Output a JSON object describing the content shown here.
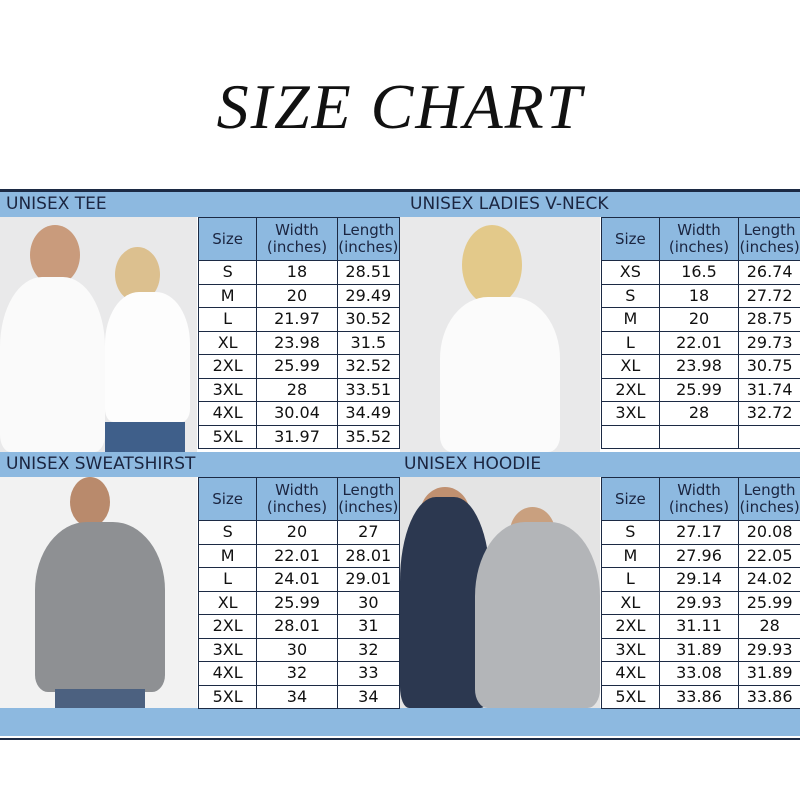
{
  "title": "SIZE CHART",
  "headers": {
    "size": "Size",
    "width": "Width\n(inches)",
    "length": "Length\n(inches)",
    "width1": "Width",
    "width2": "(inches)",
    "length1": "Length",
    "length2": "(inches)"
  },
  "sections": [
    {
      "title": "UNISEX TEE",
      "rows": [
        [
          "S",
          "18",
          "28.51"
        ],
        [
          "M",
          "20",
          "29.49"
        ],
        [
          "L",
          "21.97",
          "30.52"
        ],
        [
          "XL",
          "23.98",
          "31.5"
        ],
        [
          "2XL",
          "25.99",
          "32.52"
        ],
        [
          "3XL",
          "28",
          "33.51"
        ],
        [
          "4XL",
          "30.04",
          "34.49"
        ],
        [
          "5XL",
          "31.97",
          "35.52"
        ]
      ]
    },
    {
      "title": "UNISEX LADIES V-NECK",
      "rows": [
        [
          "XS",
          "16.5",
          "26.74"
        ],
        [
          "S",
          "18",
          "27.72"
        ],
        [
          "M",
          "20",
          "28.75"
        ],
        [
          "L",
          "22.01",
          "29.73"
        ],
        [
          "XL",
          "23.98",
          "30.75"
        ],
        [
          "2XL",
          "25.99",
          "31.74"
        ],
        [
          "3XL",
          "28",
          "32.72"
        ],
        [
          "",
          "",
          ""
        ]
      ]
    },
    {
      "title": "UNISEX SWEATSHIRST",
      "rows": [
        [
          "S",
          "20",
          "27"
        ],
        [
          "M",
          "22.01",
          "28.01"
        ],
        [
          "L",
          "24.01",
          "29.01"
        ],
        [
          "XL",
          "25.99",
          "30"
        ],
        [
          "2XL",
          "28.01",
          "31"
        ],
        [
          "3XL",
          "30",
          "32"
        ],
        [
          "4XL",
          "32",
          "33"
        ],
        [
          "5XL",
          "34",
          "34"
        ]
      ]
    },
    {
      "title": "UNISEX HOODIE",
      "rows": [
        [
          "S",
          "27.17",
          "20.08"
        ],
        [
          "M",
          "27.96",
          "22.05"
        ],
        [
          "L",
          "29.14",
          "24.02"
        ],
        [
          "XL",
          "29.93",
          "25.99"
        ],
        [
          "2XL",
          "31.11",
          "28"
        ],
        [
          "3XL",
          "31.89",
          "29.93"
        ],
        [
          "4XL",
          "33.08",
          "31.89"
        ],
        [
          "5XL",
          "33.86",
          "33.86"
        ]
      ]
    }
  ],
  "colors": {
    "band": "#8db9e0",
    "border": "#1c2a44"
  }
}
